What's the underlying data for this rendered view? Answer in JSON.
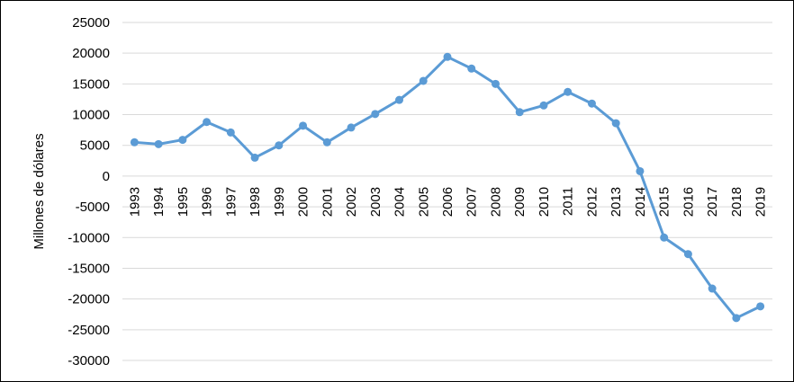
{
  "chart_data": {
    "type": "line",
    "ylabel": "Millones de dólares",
    "ylim": [
      -30000,
      25000
    ],
    "ytick_step": 5000,
    "yticks": [
      25000,
      20000,
      15000,
      10000,
      5000,
      0,
      -5000,
      -10000,
      -15000,
      -20000,
      -25000,
      -30000
    ],
    "grid": true,
    "line_color": "#5b9bd5",
    "categories": [
      "1993",
      "1994",
      "1995",
      "1996",
      "1997",
      "1998",
      "1999",
      "2000",
      "2001",
      "2002",
      "2003",
      "2004",
      "2005",
      "2006",
      "2007",
      "2008",
      "2009",
      "2010",
      "2011",
      "2012",
      "2013",
      "2014",
      "2015",
      "2016",
      "2017",
      "2018",
      "2019"
    ],
    "series": [
      {
        "values": [
          5500,
          5200,
          5900,
          8800,
          7100,
          3000,
          5000,
          8200,
          5500,
          7900,
          10100,
          12400,
          15500,
          19400,
          17500,
          15000,
          10400,
          11500,
          13700,
          11800,
          8600,
          800,
          -10000,
          -12700,
          -18300,
          -23100,
          -21200
        ]
      }
    ]
  }
}
